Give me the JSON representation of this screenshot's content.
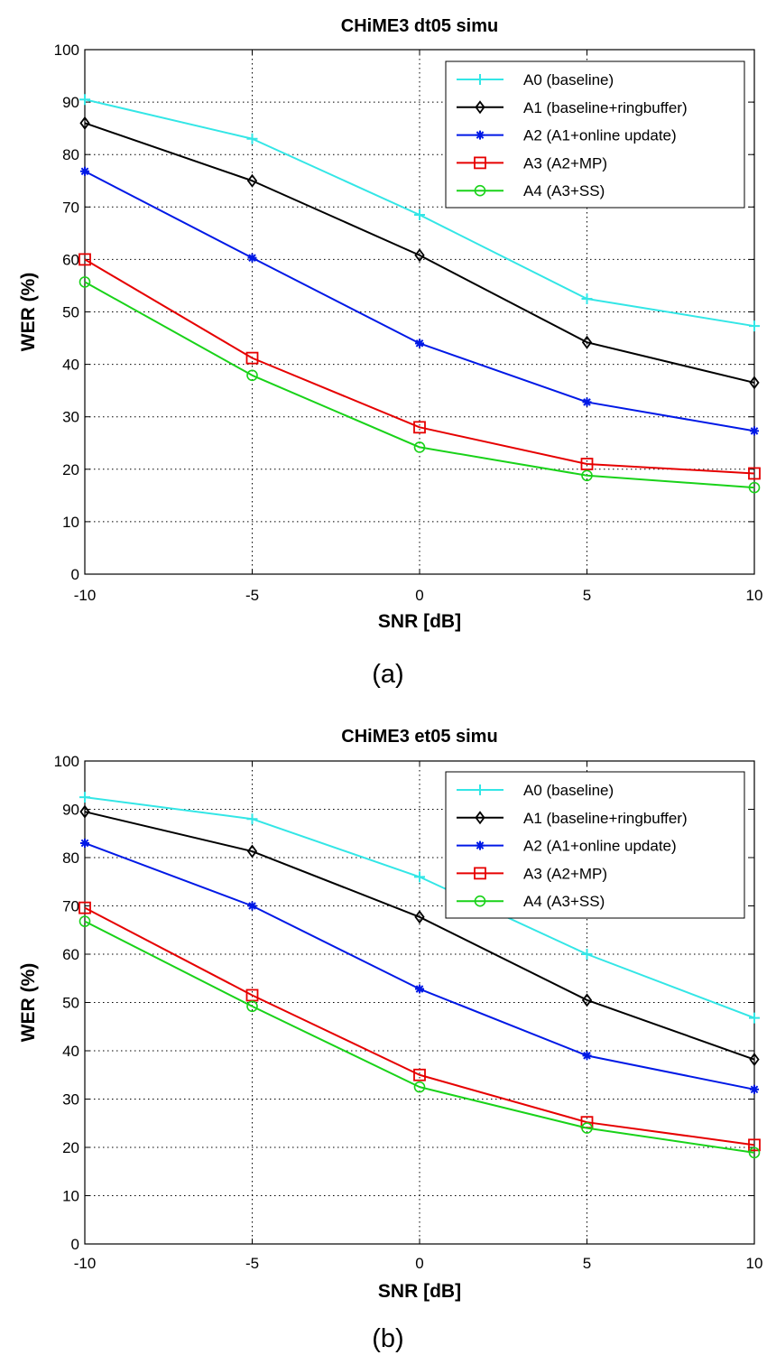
{
  "colors": {
    "A0": "#33e6e6",
    "A1": "#000000",
    "A2": "#0019e6",
    "A3": "#e60000",
    "A4": "#19d219",
    "grid": "#000000"
  },
  "legend_labels": [
    "A0 (baseline)",
    "A1 (baseline+ringbuffer)",
    "A2 (A1+online update)",
    "A3 (A2+MP)",
    "A4 (A3+SS)"
  ],
  "chart_data": [
    {
      "type": "line",
      "title": "CHiME3 dt05 simu",
      "xlabel": "SNR [dB]",
      "ylabel": "WER (%)",
      "caption": "(a)",
      "x": [
        -10,
        -5,
        0,
        5,
        10
      ],
      "xlim": [
        -10,
        10
      ],
      "ylim": [
        0,
        100
      ],
      "xticks": [
        "-10",
        "-5",
        "0",
        "5",
        "10"
      ],
      "yticks": [
        "0",
        "10",
        "20",
        "30",
        "40",
        "50",
        "60",
        "70",
        "80",
        "90",
        "100"
      ],
      "grid": true,
      "legend_position": "top-right",
      "series": [
        {
          "name": "A0 (baseline)",
          "marker": "plus",
          "values": [
            90.5,
            83,
            68.5,
            52.5,
            47.3
          ]
        },
        {
          "name": "A1 (baseline+ringbuffer)",
          "marker": "diamond",
          "values": [
            86,
            75,
            60.8,
            44.2,
            36.5
          ]
        },
        {
          "name": "A2 (A1+online update)",
          "marker": "star",
          "values": [
            76.8,
            60.3,
            44,
            32.8,
            27.3
          ]
        },
        {
          "name": "A3 (A2+MP)",
          "marker": "square",
          "values": [
            60,
            41.2,
            28,
            21,
            19.2
          ]
        },
        {
          "name": "A4 (A3+SS)",
          "marker": "circle",
          "values": [
            55.7,
            37.9,
            24.2,
            18.8,
            16.5
          ]
        }
      ]
    },
    {
      "type": "line",
      "title": "CHiME3 et05 simu",
      "xlabel": "SNR [dB]",
      "ylabel": "WER (%)",
      "caption": "(b)",
      "x": [
        -10,
        -5,
        0,
        5,
        10
      ],
      "xlim": [
        -10,
        10
      ],
      "ylim": [
        0,
        100
      ],
      "xticks": [
        "-10",
        "-5",
        "0",
        "5",
        "10"
      ],
      "yticks": [
        "0",
        "10",
        "20",
        "30",
        "40",
        "50",
        "60",
        "70",
        "80",
        "90",
        "100"
      ],
      "grid": true,
      "legend_position": "top-right",
      "series": [
        {
          "name": "A0 (baseline)",
          "marker": "plus",
          "values": [
            92.5,
            88,
            76,
            60,
            46.8
          ]
        },
        {
          "name": "A1 (baseline+ringbuffer)",
          "marker": "diamond",
          "values": [
            89.5,
            81.3,
            67.7,
            50.5,
            38.2
          ]
        },
        {
          "name": "A2 (A1+online update)",
          "marker": "star",
          "values": [
            83,
            70,
            52.8,
            39,
            32
          ]
        },
        {
          "name": "A3 (A2+MP)",
          "marker": "square",
          "values": [
            69.6,
            51.5,
            35,
            25.2,
            20.5
          ]
        },
        {
          "name": "A4 (A3+SS)",
          "marker": "circle",
          "values": [
            66.8,
            49.2,
            32.5,
            24,
            18.9
          ]
        }
      ]
    }
  ]
}
